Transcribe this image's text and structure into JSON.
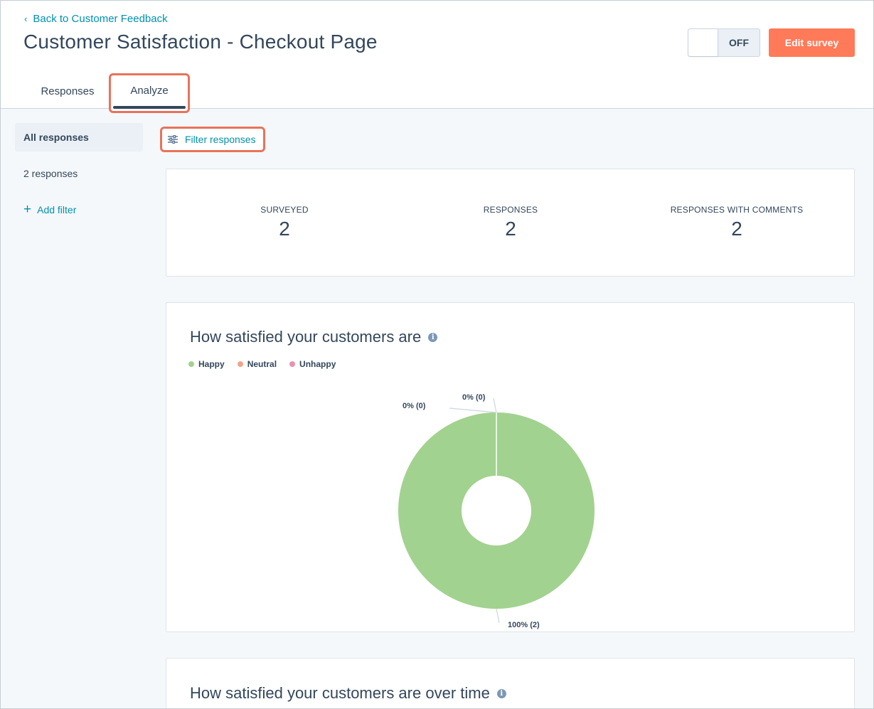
{
  "header": {
    "back_link": "Back to Customer Feedback",
    "title": "Customer Satisfaction - Checkout Page",
    "toggle_label": "OFF",
    "edit_button": "Edit survey"
  },
  "tabs": [
    {
      "label": "Responses",
      "active": false
    },
    {
      "label": "Analyze",
      "active": true
    }
  ],
  "sidebar": {
    "active_item": "All responses",
    "count_text": "2 responses",
    "add_filter": "Add filter"
  },
  "filter_button": "Filter responses",
  "stats": [
    {
      "label": "SURVEYED",
      "value": "2"
    },
    {
      "label": "RESPONSES",
      "value": "2"
    },
    {
      "label": "RESPONSES WITH COMMENTS",
      "value": "2"
    }
  ],
  "satisfaction_card": {
    "title": "How satisfied your customers are"
  },
  "time_card": {
    "title": "How satisfied your customers are over time"
  },
  "colors": {
    "accent": "#ff7a59",
    "link": "#0091ae",
    "highlight": "#e8735a",
    "happy": "#a2d28f",
    "neutral": "#f2a488",
    "unhappy": "#ea90b1"
  },
  "chart_data": {
    "type": "pie",
    "title": "How satisfied your customers are",
    "categories": [
      "Happy",
      "Neutral",
      "Unhappy"
    ],
    "values": [
      2,
      0,
      0
    ],
    "data_labels": [
      "100% (2)",
      "0% (0)",
      "0% (0)"
    ],
    "legend_position": "top-left",
    "donut": true
  }
}
